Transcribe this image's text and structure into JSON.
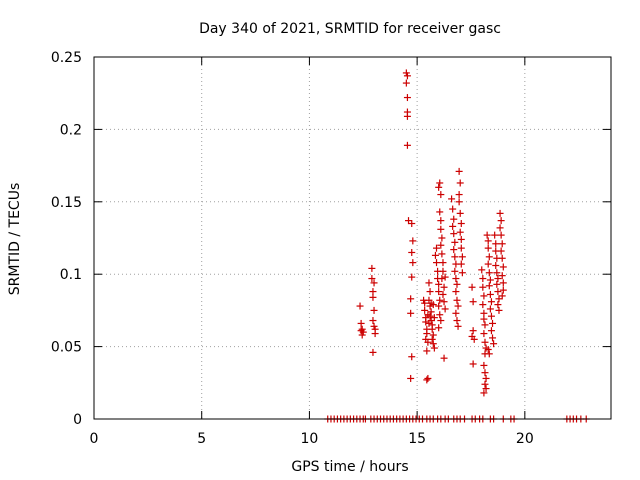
{
  "chart_data": {
    "type": "scatter",
    "title": "Day 340 of 2021, SRMTID for receiver gasc",
    "xlabel": "GPS time / hours",
    "ylabel": "SRMTID / TECUs",
    "xlim": [
      0,
      24
    ],
    "ylim": [
      0,
      0.25
    ],
    "x_ticks": [
      0,
      5,
      10,
      15,
      20
    ],
    "x_tick_labels": [
      "0",
      "5",
      "10",
      "15",
      "20"
    ],
    "y_ticks": [
      0,
      0.05,
      0.1,
      0.15,
      0.2,
      0.25
    ],
    "y_tick_labels": [
      "0",
      "0.05",
      "0.1",
      "0.15",
      "0.2",
      "0.25"
    ],
    "grid": true,
    "marker": "+",
    "series": [
      {
        "name": "SRMTID",
        "color": "#cc0000",
        "points": [
          [
            12.35,
            0.078
          ],
          [
            12.4,
            0.066
          ],
          [
            12.4,
            0.061
          ],
          [
            12.45,
            0.058
          ],
          [
            12.45,
            0.062
          ],
          [
            12.5,
            0.06
          ],
          [
            12.9,
            0.104
          ],
          [
            12.9,
            0.097
          ],
          [
            12.95,
            0.088
          ],
          [
            12.95,
            0.084
          ],
          [
            13.0,
            0.075
          ],
          [
            12.95,
            0.068
          ],
          [
            13.0,
            0.064
          ],
          [
            13.05,
            0.062
          ],
          [
            13.05,
            0.059
          ],
          [
            12.95,
            0.046
          ],
          [
            13.0,
            0.094
          ],
          [
            14.5,
            0.239
          ],
          [
            14.55,
            0.237
          ],
          [
            14.5,
            0.232
          ],
          [
            14.55,
            0.222
          ],
          [
            14.55,
            0.212
          ],
          [
            14.55,
            0.209
          ],
          [
            14.55,
            0.189
          ],
          [
            14.6,
            0.137
          ],
          [
            14.75,
            0.135
          ],
          [
            14.8,
            0.123
          ],
          [
            14.75,
            0.115
          ],
          [
            14.8,
            0.108
          ],
          [
            14.75,
            0.098
          ],
          [
            14.7,
            0.083
          ],
          [
            14.7,
            0.073
          ],
          [
            14.75,
            0.043
          ],
          [
            14.7,
            0.028
          ],
          [
            15.3,
            0.082
          ],
          [
            15.35,
            0.08
          ],
          [
            15.35,
            0.075
          ],
          [
            15.4,
            0.07
          ],
          [
            15.4,
            0.067
          ],
          [
            15.45,
            0.062
          ],
          [
            15.45,
            0.059
          ],
          [
            15.4,
            0.055
          ],
          [
            15.5,
            0.053
          ],
          [
            15.45,
            0.047
          ],
          [
            15.5,
            0.028
          ],
          [
            15.45,
            0.027
          ],
          [
            15.55,
            0.094
          ],
          [
            15.6,
            0.088
          ],
          [
            15.55,
            0.082
          ],
          [
            15.6,
            0.078
          ],
          [
            15.65,
            0.074
          ],
          [
            15.6,
            0.071
          ],
          [
            15.65,
            0.068
          ],
          [
            15.7,
            0.065
          ],
          [
            15.7,
            0.062
          ],
          [
            15.75,
            0.058
          ],
          [
            15.7,
            0.055
          ],
          [
            15.75,
            0.052
          ],
          [
            15.8,
            0.049
          ],
          [
            15.8,
            0.07
          ],
          [
            15.5,
            0.072
          ],
          [
            15.55,
            0.066
          ],
          [
            15.65,
            0.08
          ],
          [
            15.75,
            0.079
          ],
          [
            15.85,
            0.113
          ],
          [
            15.9,
            0.118
          ],
          [
            15.9,
            0.108
          ],
          [
            15.95,
            0.102
          ],
          [
            15.95,
            0.097
          ],
          [
            16.0,
            0.093
          ],
          [
            16.0,
            0.088
          ],
          [
            16.05,
            0.082
          ],
          [
            16.0,
            0.078
          ],
          [
            16.05,
            0.072
          ],
          [
            16.1,
            0.068
          ],
          [
            16.0,
            0.063
          ],
          [
            16.05,
            0.143
          ],
          [
            16.1,
            0.137
          ],
          [
            16.1,
            0.131
          ],
          [
            16.15,
            0.125
          ],
          [
            16.1,
            0.12
          ],
          [
            16.15,
            0.114
          ],
          [
            16.2,
            0.108
          ],
          [
            16.2,
            0.102
          ],
          [
            16.15,
            0.097
          ],
          [
            16.25,
            0.091
          ],
          [
            16.0,
            0.16
          ],
          [
            16.05,
            0.163
          ],
          [
            16.1,
            0.155
          ],
          [
            16.2,
            0.086
          ],
          [
            16.25,
            0.081
          ],
          [
            16.3,
            0.076
          ],
          [
            16.25,
            0.042
          ],
          [
            16.3,
            0.098
          ],
          [
            16.6,
            0.152
          ],
          [
            16.65,
            0.145
          ],
          [
            16.7,
            0.138
          ],
          [
            16.65,
            0.133
          ],
          [
            16.7,
            0.128
          ],
          [
            16.75,
            0.122
          ],
          [
            16.7,
            0.117
          ],
          [
            16.75,
            0.112
          ],
          [
            16.8,
            0.107
          ],
          [
            16.75,
            0.102
          ],
          [
            16.8,
            0.097
          ],
          [
            16.85,
            0.093
          ],
          [
            16.8,
            0.088
          ],
          [
            16.85,
            0.082
          ],
          [
            16.9,
            0.078
          ],
          [
            16.8,
            0.073
          ],
          [
            16.85,
            0.068
          ],
          [
            16.9,
            0.064
          ],
          [
            16.95,
            0.171
          ],
          [
            17.0,
            0.163
          ],
          [
            16.95,
            0.155
          ],
          [
            16.95,
            0.15
          ],
          [
            17.0,
            0.142
          ],
          [
            17.05,
            0.135
          ],
          [
            17.0,
            0.129
          ],
          [
            17.05,
            0.124
          ],
          [
            17.05,
            0.118
          ],
          [
            17.1,
            0.112
          ],
          [
            17.05,
            0.107
          ],
          [
            17.1,
            0.101
          ],
          [
            17.55,
            0.091
          ],
          [
            17.6,
            0.081
          ],
          [
            17.6,
            0.061
          ],
          [
            17.55,
            0.057
          ],
          [
            17.65,
            0.055
          ],
          [
            17.6,
            0.038
          ],
          [
            18.0,
            0.103
          ],
          [
            18.05,
            0.097
          ],
          [
            18.05,
            0.091
          ],
          [
            18.1,
            0.085
          ],
          [
            18.05,
            0.079
          ],
          [
            18.1,
            0.073
          ],
          [
            18.1,
            0.069
          ],
          [
            18.15,
            0.065
          ],
          [
            18.1,
            0.059
          ],
          [
            18.15,
            0.053
          ],
          [
            18.2,
            0.049
          ],
          [
            18.15,
            0.045
          ],
          [
            18.1,
            0.037
          ],
          [
            18.15,
            0.032
          ],
          [
            18.2,
            0.028
          ],
          [
            18.15,
            0.024
          ],
          [
            18.1,
            0.018
          ],
          [
            18.2,
            0.021
          ],
          [
            18.25,
            0.127
          ],
          [
            18.3,
            0.123
          ],
          [
            18.3,
            0.118
          ],
          [
            18.35,
            0.112
          ],
          [
            18.3,
            0.107
          ],
          [
            18.35,
            0.101
          ],
          [
            18.4,
            0.096
          ],
          [
            18.35,
            0.092
          ],
          [
            18.4,
            0.086
          ],
          [
            18.45,
            0.081
          ],
          [
            18.4,
            0.076
          ],
          [
            18.45,
            0.071
          ],
          [
            18.5,
            0.066
          ],
          [
            18.45,
            0.061
          ],
          [
            18.5,
            0.056
          ],
          [
            18.55,
            0.052
          ],
          [
            18.3,
            0.048
          ],
          [
            18.35,
            0.045
          ],
          [
            18.6,
            0.127
          ],
          [
            18.65,
            0.121
          ],
          [
            18.65,
            0.116
          ],
          [
            18.7,
            0.111
          ],
          [
            18.65,
            0.106
          ],
          [
            18.7,
            0.101
          ],
          [
            18.75,
            0.097
          ],
          [
            18.7,
            0.093
          ],
          [
            18.75,
            0.088
          ],
          [
            18.8,
            0.083
          ],
          [
            18.75,
            0.079
          ],
          [
            18.8,
            0.075
          ],
          [
            18.85,
            0.142
          ],
          [
            18.9,
            0.137
          ],
          [
            18.85,
            0.132
          ],
          [
            18.9,
            0.127
          ],
          [
            18.95,
            0.121
          ],
          [
            18.9,
            0.116
          ],
          [
            18.95,
            0.111
          ],
          [
            19.0,
            0.105
          ],
          [
            18.95,
            0.099
          ],
          [
            19.0,
            0.094
          ],
          [
            19.0,
            0.089
          ],
          [
            18.95,
            0.085
          ],
          [
            10.85,
            0
          ],
          [
            11.0,
            0
          ],
          [
            11.15,
            0
          ],
          [
            11.3,
            0
          ],
          [
            11.45,
            0
          ],
          [
            11.6,
            0
          ],
          [
            11.75,
            0
          ],
          [
            11.9,
            0
          ],
          [
            12.05,
            0
          ],
          [
            12.2,
            0
          ],
          [
            12.35,
            0
          ],
          [
            12.5,
            0
          ],
          [
            12.6,
            0
          ],
          [
            12.85,
            0
          ],
          [
            13.0,
            0
          ],
          [
            13.15,
            0
          ],
          [
            13.3,
            0
          ],
          [
            13.45,
            0
          ],
          [
            13.6,
            0
          ],
          [
            13.75,
            0
          ],
          [
            13.9,
            0
          ],
          [
            14.05,
            0
          ],
          [
            14.2,
            0
          ],
          [
            14.35,
            0
          ],
          [
            14.5,
            0
          ],
          [
            14.65,
            0
          ],
          [
            14.8,
            0
          ],
          [
            14.95,
            0
          ],
          [
            15.1,
            0
          ],
          [
            15.25,
            0
          ],
          [
            15.45,
            0
          ],
          [
            15.6,
            0
          ],
          [
            15.75,
            0
          ],
          [
            15.95,
            0
          ],
          [
            16.1,
            0
          ],
          [
            16.3,
            0
          ],
          [
            16.45,
            0
          ],
          [
            16.7,
            0
          ],
          [
            16.85,
            0
          ],
          [
            17.0,
            0
          ],
          [
            17.2,
            0
          ],
          [
            17.55,
            0
          ],
          [
            17.7,
            0
          ],
          [
            17.9,
            0
          ],
          [
            18.05,
            0
          ],
          [
            18.4,
            0
          ],
          [
            18.55,
            0
          ],
          [
            19.0,
            0
          ],
          [
            19.35,
            0
          ],
          [
            19.5,
            0
          ],
          [
            21.95,
            0
          ],
          [
            22.1,
            0
          ],
          [
            22.25,
            0
          ],
          [
            22.4,
            0
          ],
          [
            22.6,
            0
          ],
          [
            22.85,
            0
          ]
        ]
      }
    ]
  }
}
